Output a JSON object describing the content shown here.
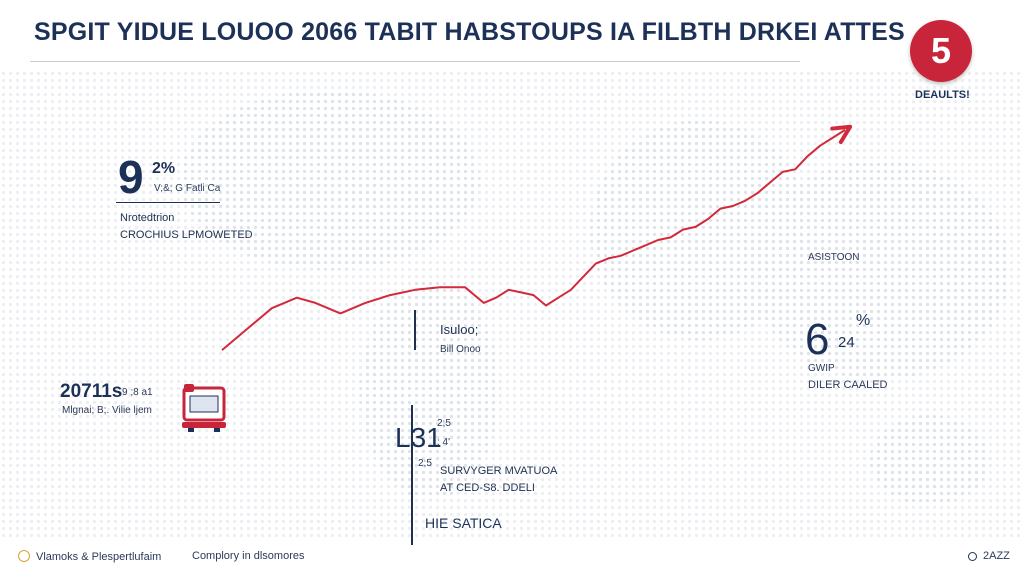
{
  "header": {
    "title": "SPGIT YIDUE LOUOO 2066 TABIT HABSTOUPS IA FILBTH DRKEI ATTES"
  },
  "badge": {
    "value": "5",
    "label": "DEAULTS!"
  },
  "callouts": {
    "top_left": {
      "big": "9",
      "pct": "2%",
      "sub": "V;&; G Fatli Ca",
      "line1": "Nrotedtrion",
      "line2": "CROCHIUS LPMOWETED"
    },
    "left": {
      "value": "20711s",
      "suffix": "9 ;8 a1",
      "sub": "Mlgnai; B;. Vilie ljem"
    },
    "middle_top": {
      "line1": "Isuloo;",
      "line2": "Bill Onoo"
    },
    "middle_low": {
      "big": "L31",
      "a": "2;5",
      "b": "; 4'",
      "c": "2;5",
      "line1": "SURVYGER MVATUOA",
      "line2": "AT CED-S8. DDELI",
      "line3": "HIE SATICA"
    },
    "right": {
      "label": "ASISTOON",
      "big": "6",
      "pct": "%",
      "pct2": "24",
      "line1": "GWIP",
      "line2": "DILER CAALED"
    }
  },
  "footer": {
    "left": "Vlamoks & Plespertlufaim",
    "middle": "Complory in dlsomores",
    "right": "2AZZ"
  },
  "colors": {
    "line": "#d2293b",
    "text": "#1d3158",
    "dots": "#c9d3e0"
  },
  "chart_data": {
    "type": "line",
    "title": "SPGIT YIDUE LOUOO 2066 TABIT HABSTOUPS IA FILBTH DRKEI ATTES",
    "xlabel": "",
    "ylabel": "",
    "grid": false,
    "legend": "none",
    "xlim": [
      0,
      100
    ],
    "ylim": [
      0,
      100
    ],
    "series": [
      {
        "x": [
          0,
          4,
          8,
          12,
          15,
          19,
          23,
          27,
          31,
          35,
          39,
          42,
          44,
          46,
          48,
          50,
          52,
          54,
          56,
          58,
          60,
          62,
          64,
          66,
          68,
          70,
          72,
          74,
          76,
          78,
          80,
          82,
          84,
          86,
          88,
          90,
          92,
          94,
          96,
          98,
          100
        ],
        "values": [
          16,
          24,
          32,
          36,
          34,
          30,
          34,
          37,
          39,
          40,
          40,
          34,
          36,
          39,
          38,
          37,
          33,
          36,
          39,
          44,
          49,
          51,
          52,
          54,
          56,
          58,
          59,
          62,
          63,
          66,
          70,
          71,
          73,
          76,
          80,
          84,
          85,
          90,
          94,
          97,
          100
        ]
      }
    ]
  }
}
